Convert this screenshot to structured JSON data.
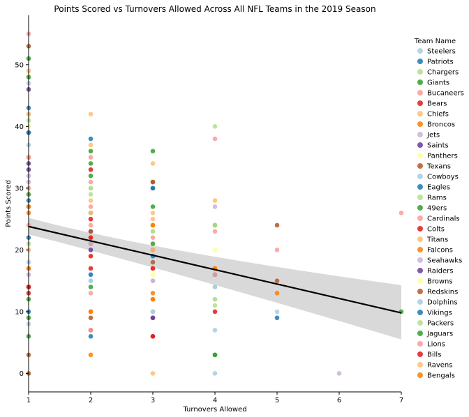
{
  "chart_data": {
    "type": "scatter",
    "title": "Points Scored vs Turnovers Allowed Across All NFL Teams in the 2019 Season",
    "xlabel": "Turnovers Allowed",
    "ylabel": "Points Scored",
    "xlim": [
      1,
      7
    ],
    "ylim": [
      -3,
      58
    ],
    "xticks": [
      1,
      2,
      3,
      4,
      5,
      6,
      7
    ],
    "yticks": [
      0,
      10,
      20,
      30,
      40,
      50
    ],
    "legend": {
      "title": "Team Name",
      "position": "right-outside"
    },
    "regression": {
      "color": "#000000",
      "band_color": "#d9d9d9",
      "start": [
        1,
        23.8
      ],
      "end": [
        7,
        9.8
      ],
      "ci_low_start": [
        1,
        22.5
      ],
      "ci_high_start": [
        1,
        25.2
      ],
      "ci_low_end": [
        7,
        5.5
      ],
      "ci_high_end": [
        7,
        14.3
      ],
      "ci_low_mid": [
        3,
        17.5
      ],
      "ci_high_mid": [
        3,
        19.8
      ]
    },
    "series": [
      {
        "name": "Steelers",
        "color": "#a6cee3",
        "points": [
          [
            1,
            8
          ],
          [
            2,
            16
          ],
          [
            3,
            10
          ],
          [
            4,
            0
          ],
          [
            4,
            14
          ],
          [
            5,
            10
          ]
        ]
      },
      {
        "name": "Patriots",
        "color": "#1f78b4",
        "points": [
          [
            1,
            43
          ],
          [
            1,
            39
          ],
          [
            2,
            38
          ],
          [
            3,
            30
          ],
          [
            2,
            6
          ],
          [
            5,
            9
          ]
        ]
      },
      {
        "name": "Chargers",
        "color": "#b2df8a",
        "points": [
          [
            1,
            41
          ],
          [
            2,
            29
          ],
          [
            3,
            23
          ],
          [
            4,
            40
          ],
          [
            4,
            12
          ]
        ]
      },
      {
        "name": "Giants",
        "color": "#33a02c",
        "points": [
          [
            1,
            51
          ],
          [
            1,
            12
          ],
          [
            2,
            34
          ],
          [
            2,
            26
          ],
          [
            3,
            27
          ],
          [
            4,
            3
          ]
        ]
      },
      {
        "name": "Bucaneers",
        "color": "#fb9a99",
        "points": [
          [
            1,
            55
          ],
          [
            2,
            31
          ],
          [
            2,
            27
          ],
          [
            3,
            22
          ],
          [
            4,
            38
          ],
          [
            4,
            23
          ]
        ]
      },
      {
        "name": "Bears",
        "color": "#e31a1c",
        "points": [
          [
            1,
            14
          ],
          [
            2,
            21
          ],
          [
            2,
            17
          ],
          [
            3,
            6
          ],
          [
            4,
            10
          ]
        ]
      },
      {
        "name": "Chiefs",
        "color": "#fdbf6f",
        "points": [
          [
            1,
            49
          ],
          [
            2,
            42
          ],
          [
            2,
            28
          ],
          [
            3,
            34
          ],
          [
            3,
            26
          ]
        ]
      },
      {
        "name": "Broncos",
        "color": "#ff7f00",
        "points": [
          [
            1,
            26
          ],
          [
            2,
            10
          ],
          [
            2,
            3
          ],
          [
            3,
            13
          ],
          [
            4,
            17
          ]
        ]
      },
      {
        "name": "Jets",
        "color": "#cab2d6",
        "points": [
          [
            1,
            32
          ],
          [
            2,
            20
          ],
          [
            3,
            15
          ],
          [
            4,
            27
          ],
          [
            6,
            0
          ]
        ]
      },
      {
        "name": "Saints",
        "color": "#6a3d9a",
        "points": [
          [
            1,
            46
          ],
          [
            1,
            34
          ],
          [
            2,
            23
          ],
          [
            3,
            9
          ]
        ]
      },
      {
        "name": "Panthers",
        "color": "#ffff99",
        "points": [
          [
            1,
            30
          ],
          [
            2,
            19
          ],
          [
            3,
            16
          ],
          [
            4,
            28
          ],
          [
            4,
            20
          ]
        ]
      },
      {
        "name": "Texans",
        "color": "#b15928",
        "points": [
          [
            1,
            53
          ],
          [
            1,
            27
          ],
          [
            2,
            23
          ],
          [
            3,
            31
          ],
          [
            5,
            15
          ]
        ]
      },
      {
        "name": "Cowboys",
        "color": "#a6cee3",
        "points": [
          [
            1,
            37
          ],
          [
            2,
            15
          ],
          [
            3,
            19
          ],
          [
            4,
            7
          ]
        ]
      },
      {
        "name": "Eagles",
        "color": "#1f78b4",
        "points": [
          [
            1,
            28
          ],
          [
            1,
            10
          ],
          [
            3,
            30
          ],
          [
            4,
            16
          ]
        ]
      },
      {
        "name": "Rams",
        "color": "#b2df8a",
        "points": [
          [
            1,
            40
          ],
          [
            2,
            30
          ],
          [
            3,
            10
          ],
          [
            4,
            12
          ]
        ]
      },
      {
        "name": "49ers",
        "color": "#33a02c",
        "points": [
          [
            1,
            48
          ],
          [
            1,
            29
          ],
          [
            2,
            36
          ],
          [
            3,
            36
          ],
          [
            4,
            24
          ],
          [
            7,
            10
          ]
        ]
      },
      {
        "name": "Cardinals",
        "color": "#fb9a99",
        "points": [
          [
            1,
            30
          ],
          [
            2,
            24
          ],
          [
            2,
            13
          ],
          [
            3,
            17
          ],
          [
            5,
            20
          ],
          [
            7,
            26
          ]
        ]
      },
      {
        "name": "Colts",
        "color": "#e31a1c",
        "points": [
          [
            1,
            14
          ],
          [
            2,
            33
          ],
          [
            2,
            25
          ],
          [
            2,
            7
          ],
          [
            3,
            20
          ]
        ]
      },
      {
        "name": "Titans",
        "color": "#fdbf6f",
        "points": [
          [
            1,
            42
          ],
          [
            2,
            37
          ],
          [
            3,
            25
          ],
          [
            3,
            0
          ]
        ]
      },
      {
        "name": "Falcons",
        "color": "#ff7f00",
        "points": [
          [
            1,
            35
          ],
          [
            1,
            17
          ],
          [
            2,
            22
          ],
          [
            3,
            24
          ],
          [
            3,
            12
          ],
          [
            5,
            13
          ]
        ]
      },
      {
        "name": "Seahawks",
        "color": "#cab2d6",
        "points": [
          [
            1,
            31
          ],
          [
            1,
            16
          ],
          [
            2,
            21
          ],
          [
            3,
            15
          ],
          [
            4,
            16
          ]
        ]
      },
      {
        "name": "Raiders",
        "color": "#6a3d9a",
        "points": [
          [
            1,
            33
          ],
          [
            2,
            20
          ],
          [
            3,
            9
          ]
        ]
      },
      {
        "name": "Browns",
        "color": "#ffff99",
        "points": [
          [
            1,
            40
          ],
          [
            2,
            19
          ],
          [
            3,
            16
          ]
        ]
      },
      {
        "name": "Redskins",
        "color": "#b15928",
        "points": [
          [
            1,
            0
          ],
          [
            1,
            3
          ],
          [
            2,
            9
          ],
          [
            3,
            18
          ],
          [
            3,
            31
          ],
          [
            5,
            24
          ]
        ]
      },
      {
        "name": "Dolphins",
        "color": "#a6cee3",
        "points": [
          [
            1,
            18
          ],
          [
            1,
            47
          ],
          [
            2,
            15
          ],
          [
            3,
            10
          ],
          [
            4,
            14
          ]
        ]
      },
      {
        "name": "Vikings",
        "color": "#1f78b4",
        "points": [
          [
            1,
            39
          ],
          [
            1,
            22
          ],
          [
            2,
            16
          ],
          [
            3,
            19
          ],
          [
            4,
            16
          ]
        ]
      },
      {
        "name": "Packers",
        "color": "#b2df8a",
        "points": [
          [
            1,
            21
          ],
          [
            2,
            30
          ],
          [
            3,
            23
          ],
          [
            4,
            11
          ],
          [
            4,
            24
          ]
        ]
      },
      {
        "name": "Jaguars",
        "color": "#33a02c",
        "points": [
          [
            1,
            6
          ],
          [
            1,
            9
          ],
          [
            2,
            32
          ],
          [
            2,
            14
          ],
          [
            3,
            21
          ],
          [
            4,
            3
          ]
        ]
      },
      {
        "name": "Lions",
        "color": "#fb9a99",
        "points": [
          [
            1,
            35
          ],
          [
            1,
            24
          ],
          [
            2,
            35
          ],
          [
            2,
            7
          ],
          [
            3,
            17
          ],
          [
            4,
            16
          ]
        ]
      },
      {
        "name": "Bills",
        "color": "#e31a1c",
        "points": [
          [
            1,
            13
          ],
          [
            2,
            22
          ],
          [
            2,
            19
          ],
          [
            3,
            17
          ],
          [
            3,
            6
          ]
        ]
      },
      {
        "name": "Ravens",
        "color": "#fdbf6f",
        "points": [
          [
            1,
            42
          ],
          [
            1,
            20
          ],
          [
            2,
            26
          ],
          [
            3,
            20
          ],
          [
            4,
            28
          ]
        ]
      },
      {
        "name": "Bengals",
        "color": "#ff7f00",
        "points": [
          [
            1,
            27
          ],
          [
            1,
            17
          ],
          [
            2,
            10
          ],
          [
            3,
            24
          ],
          [
            3,
            12
          ],
          [
            4,
            17
          ]
        ]
      }
    ]
  }
}
